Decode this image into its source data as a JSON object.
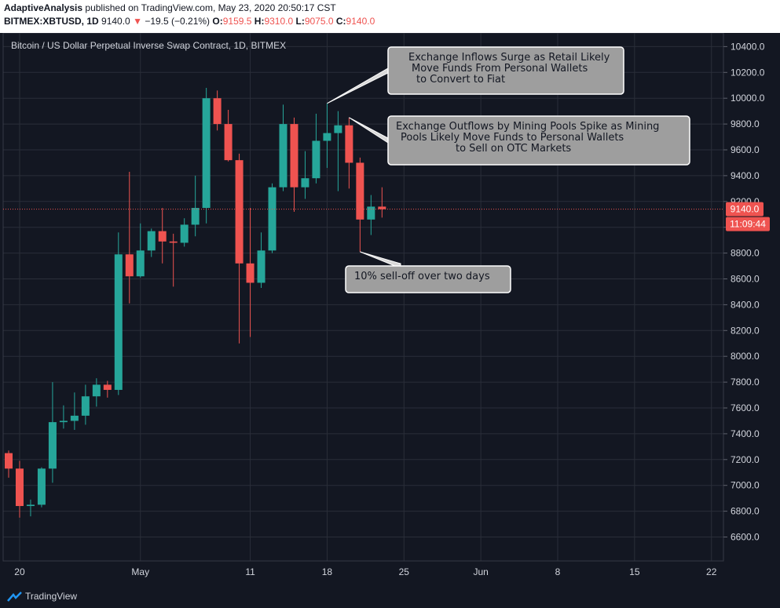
{
  "header": {
    "author": "AdaptiveAnalysis",
    "published": "published on TradingView.com, May 23, 2020 20:50:17 CST",
    "symbol": "BITMEX:XBTUSD, 1D",
    "last": "9140.0",
    "change": "−19.5 (−0.21%)",
    "ohlc": [
      {
        "k": "O:",
        "v": "9159.5"
      },
      {
        "k": "H:",
        "v": "9310.0"
      },
      {
        "k": "L:",
        "v": "9075.0"
      },
      {
        "k": "C:",
        "v": "9140.0"
      }
    ]
  },
  "footer": {
    "brand": "TradingView"
  },
  "colors": {
    "up": "#26a69a",
    "down": "#ef5350",
    "background": "#131722",
    "grid": "#2a2e39",
    "text": "#d1d4dc"
  },
  "chart_data": {
    "type": "candlestick",
    "title": "Bitcoin / US Dollar Perpetual Inverse Swap Contract, 1D, BITMEX",
    "y_ticks": [
      "6600.0",
      "6800.0",
      "7000.0",
      "7200.0",
      "7400.0",
      "7600.0",
      "7800.0",
      "8000.0",
      "8200.0",
      "8400.0",
      "8600.0",
      "8800.0",
      "9000.0",
      "9200.0",
      "9400.0",
      "9600.0",
      "9800.0",
      "10000.0",
      "10200.0",
      "10400.0"
    ],
    "x_ticks": [
      {
        "label": "20",
        "date": "2020-04-20"
      },
      {
        "label": "May",
        "date": "2020-05-01"
      },
      {
        "label": "11",
        "date": "2020-05-11"
      },
      {
        "label": "18",
        "date": "2020-05-18"
      },
      {
        "label": "25",
        "date": "2020-05-25"
      },
      {
        "label": "Jun",
        "date": "2020-06-01"
      },
      {
        "label": "8",
        "date": "2020-06-08"
      },
      {
        "label": "15",
        "date": "2020-06-15"
      },
      {
        "label": "22",
        "date": "2020-06-22"
      }
    ],
    "last_price_label": "9140.0",
    "countdown_label": "11:09:44",
    "candles": [
      {
        "date": "2020-04-19",
        "o": 7250,
        "h": 7270,
        "l": 7060,
        "c": 7130
      },
      {
        "date": "2020-04-20",
        "o": 7130,
        "h": 7190,
        "l": 6750,
        "c": 6840
      },
      {
        "date": "2020-04-21",
        "o": 6840,
        "h": 6890,
        "l": 6760,
        "c": 6850
      },
      {
        "date": "2020-04-22",
        "o": 6850,
        "h": 7140,
        "l": 6830,
        "c": 7130
      },
      {
        "date": "2020-04-23",
        "o": 7130,
        "h": 7800,
        "l": 7020,
        "c": 7490
      },
      {
        "date": "2020-04-24",
        "o": 7490,
        "h": 7620,
        "l": 7440,
        "c": 7500
      },
      {
        "date": "2020-04-25",
        "o": 7500,
        "h": 7720,
        "l": 7430,
        "c": 7540
      },
      {
        "date": "2020-04-26",
        "o": 7540,
        "h": 7780,
        "l": 7470,
        "c": 7690
      },
      {
        "date": "2020-04-27",
        "o": 7690,
        "h": 7830,
        "l": 7610,
        "c": 7780
      },
      {
        "date": "2020-04-28",
        "o": 7780,
        "h": 7810,
        "l": 7680,
        "c": 7740
      },
      {
        "date": "2020-04-29",
        "o": 7740,
        "h": 8960,
        "l": 7700,
        "c": 8790
      },
      {
        "date": "2020-04-30",
        "o": 8790,
        "h": 9430,
        "l": 8410,
        "c": 8620
      },
      {
        "date": "2020-05-01",
        "o": 8620,
        "h": 9030,
        "l": 8610,
        "c": 8820
      },
      {
        "date": "2020-05-02",
        "o": 8820,
        "h": 8990,
        "l": 8770,
        "c": 8970
      },
      {
        "date": "2020-05-03",
        "o": 8970,
        "h": 9150,
        "l": 8720,
        "c": 8890
      },
      {
        "date": "2020-05-04",
        "o": 8890,
        "h": 8950,
        "l": 8540,
        "c": 8880
      },
      {
        "date": "2020-05-05",
        "o": 8880,
        "h": 9070,
        "l": 8850,
        "c": 9020
      },
      {
        "date": "2020-05-06",
        "o": 9020,
        "h": 9400,
        "l": 8930,
        "c": 9150
      },
      {
        "date": "2020-05-07",
        "o": 9150,
        "h": 10080,
        "l": 9030,
        "c": 10000
      },
      {
        "date": "2020-05-08",
        "o": 10000,
        "h": 10060,
        "l": 9750,
        "c": 9800
      },
      {
        "date": "2020-05-09",
        "o": 9800,
        "h": 9910,
        "l": 9510,
        "c": 9520
      },
      {
        "date": "2020-05-10",
        "o": 9520,
        "h": 9570,
        "l": 8100,
        "c": 8720
      },
      {
        "date": "2020-05-11",
        "o": 8720,
        "h": 9150,
        "l": 8150,
        "c": 8570
      },
      {
        "date": "2020-05-12",
        "o": 8570,
        "h": 8960,
        "l": 8530,
        "c": 8820
      },
      {
        "date": "2020-05-13",
        "o": 8820,
        "h": 9340,
        "l": 8800,
        "c": 9310
      },
      {
        "date": "2020-05-14",
        "o": 9310,
        "h": 9950,
        "l": 9280,
        "c": 9800
      },
      {
        "date": "2020-05-15",
        "o": 9800,
        "h": 9850,
        "l": 9120,
        "c": 9310
      },
      {
        "date": "2020-05-16",
        "o": 9310,
        "h": 9590,
        "l": 9220,
        "c": 9380
      },
      {
        "date": "2020-05-17",
        "o": 9380,
        "h": 9880,
        "l": 9340,
        "c": 9670
      },
      {
        "date": "2020-05-18",
        "o": 9670,
        "h": 9960,
        "l": 9460,
        "c": 9730
      },
      {
        "date": "2020-05-19",
        "o": 9730,
        "h": 9900,
        "l": 9280,
        "c": 9790
      },
      {
        "date": "2020-05-20",
        "o": 9790,
        "h": 9850,
        "l": 9300,
        "c": 9500
      },
      {
        "date": "2020-05-21",
        "o": 9500,
        "h": 9540,
        "l": 8810,
        "c": 9060
      },
      {
        "date": "2020-05-22",
        "o": 9060,
        "h": 9250,
        "l": 8940,
        "c": 9160
      },
      {
        "date": "2020-05-23",
        "o": 9160,
        "h": 9310,
        "l": 9075,
        "c": 9140
      }
    ],
    "annotations": [
      {
        "lines": [
          "Exchange Inflows Surge as Retail Likely",
          "Move Funds From Personal Wallets",
          "to Convert to Fiat"
        ],
        "points_to_date": "2020-05-18",
        "points_to_price": 9960
      },
      {
        "lines": [
          "Exchange Outflows by Mining Pools Spike as Mining",
          "Pools Likely Move Funds to Personal Wallets",
          "to Sell on OTC Markets"
        ],
        "points_to_date": "2020-05-20",
        "points_to_price": 9850
      },
      {
        "lines": [
          "10% sell-off over two days"
        ],
        "points_to_date": "2020-05-21",
        "points_to_price": 8810
      }
    ]
  }
}
